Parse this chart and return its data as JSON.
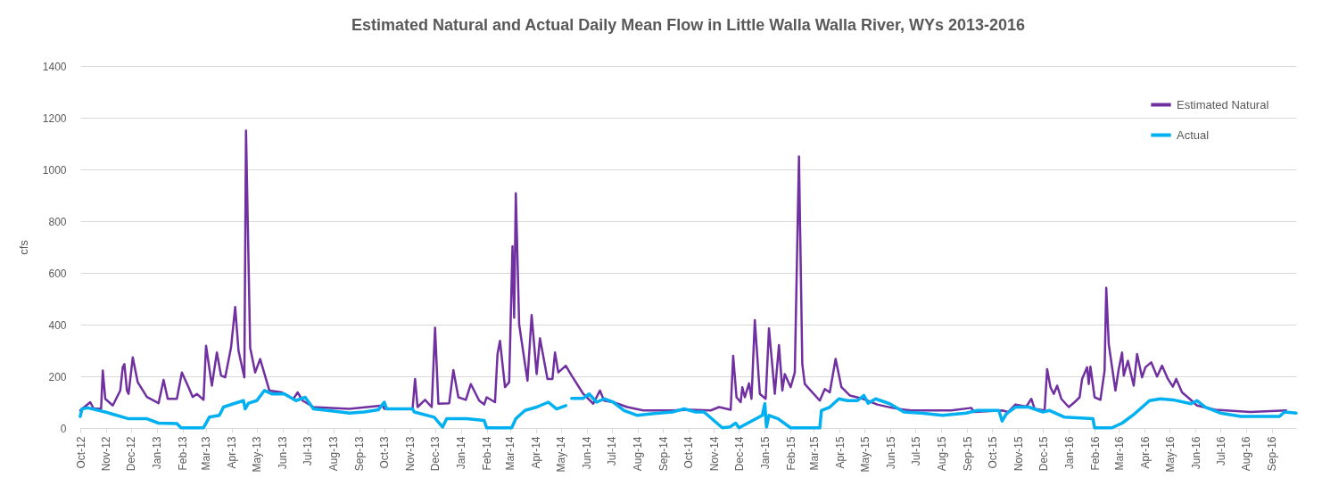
{
  "chart_data": {
    "type": "line",
    "title": "Estimated Natural and Actual Daily Mean Flow in Little Walla Walla River, WYs 2013-2016",
    "ylabel": "cfs",
    "xlim": [
      "2012-10-01",
      "2016-09-30"
    ],
    "ylim": [
      0,
      1400
    ],
    "yticks": [
      0,
      200,
      400,
      600,
      800,
      1000,
      1200,
      1400
    ],
    "xticks": [
      {
        "value": "2012-10-01",
        "label": "Oct-12"
      },
      {
        "value": "2012-11-01",
        "label": "Nov-12"
      },
      {
        "value": "2012-12-01",
        "label": "Dec-12"
      },
      {
        "value": "2013-01-01",
        "label": "Jan-13"
      },
      {
        "value": "2013-02-01",
        "label": "Feb-13"
      },
      {
        "value": "2013-03-01",
        "label": "Mar-13"
      },
      {
        "value": "2013-04-01",
        "label": "Apr-13"
      },
      {
        "value": "2013-05-01",
        "label": "May-13"
      },
      {
        "value": "2013-06-01",
        "label": "Jun-13"
      },
      {
        "value": "2013-07-01",
        "label": "Jul-13"
      },
      {
        "value": "2013-08-01",
        "label": "Aug-13"
      },
      {
        "value": "2013-09-01",
        "label": "Sep-13"
      },
      {
        "value": "2013-10-01",
        "label": "Oct-13"
      },
      {
        "value": "2013-11-01",
        "label": "Nov-13"
      },
      {
        "value": "2013-12-01",
        "label": "Dec-13"
      },
      {
        "value": "2014-01-01",
        "label": "Jan-14"
      },
      {
        "value": "2014-02-01",
        "label": "Feb-14"
      },
      {
        "value": "2014-03-01",
        "label": "Mar-14"
      },
      {
        "value": "2014-04-01",
        "label": "Apr-14"
      },
      {
        "value": "2014-05-01",
        "label": "May-14"
      },
      {
        "value": "2014-06-01",
        "label": "Jun-14"
      },
      {
        "value": "2014-07-01",
        "label": "Jul-14"
      },
      {
        "value": "2014-08-01",
        "label": "Aug-14"
      },
      {
        "value": "2014-09-01",
        "label": "Sep-14"
      },
      {
        "value": "2014-10-01",
        "label": "Oct-14"
      },
      {
        "value": "2014-11-01",
        "label": "Nov-14"
      },
      {
        "value": "2014-12-01",
        "label": "Dec-14"
      },
      {
        "value": "2015-01-01",
        "label": "Jan-15"
      },
      {
        "value": "2015-02-01",
        "label": "Feb-15"
      },
      {
        "value": "2015-03-01",
        "label": "Mar-15"
      },
      {
        "value": "2015-04-01",
        "label": "Apr-15"
      },
      {
        "value": "2015-05-01",
        "label": "May-15"
      },
      {
        "value": "2015-06-01",
        "label": "Jun-15"
      },
      {
        "value": "2015-07-01",
        "label": "Jul-15"
      },
      {
        "value": "2015-08-01",
        "label": "Aug-15"
      },
      {
        "value": "2015-09-01",
        "label": "Sep-15"
      },
      {
        "value": "2015-10-01",
        "label": "Oct-15"
      },
      {
        "value": "2015-11-01",
        "label": "Nov-15"
      },
      {
        "value": "2015-12-01",
        "label": "Dec-15"
      },
      {
        "value": "2016-01-01",
        "label": "Jan-16"
      },
      {
        "value": "2016-02-01",
        "label": "Feb-16"
      },
      {
        "value": "2016-03-01",
        "label": "Mar-16"
      },
      {
        "value": "2016-04-01",
        "label": "Apr-16"
      },
      {
        "value": "2016-05-01",
        "label": "May-16"
      },
      {
        "value": "2016-06-01",
        "label": "Jun-16"
      },
      {
        "value": "2016-07-01",
        "label": "Jul-16"
      },
      {
        "value": "2016-08-01",
        "label": "Aug-16"
      },
      {
        "value": "2016-09-01",
        "label": "Sep-16"
      }
    ],
    "grid": "y",
    "legend": "top right",
    "marker": "none",
    "line_style": "solid",
    "series": [
      {
        "name": "Estimated Natural",
        "color": "#7030a0",
        "x": [
          "2012-10-01",
          "2012-10-13",
          "2012-10-17",
          "2012-10-26",
          "2012-10-28",
          "2012-10-31",
          "2012-11-09",
          "2012-11-18",
          "2012-11-21",
          "2012-11-23",
          "2012-11-26",
          "2012-11-28",
          "2012-12-03",
          "2012-12-09",
          "2012-12-20",
          "2013-01-03",
          "2013-01-09",
          "2013-01-14",
          "2013-01-25",
          "2013-01-31",
          "2013-02-08",
          "2013-02-13",
          "2013-02-18",
          "2013-02-26",
          "2013-03-01",
          "2013-03-08",
          "2013-03-14",
          "2013-03-19",
          "2013-03-24",
          "2013-03-31",
          "2013-04-05",
          "2013-04-09",
          "2013-04-16",
          "2013-04-18",
          "2013-04-23",
          "2013-04-29",
          "2013-05-05",
          "2013-05-16",
          "2013-05-31",
          "2013-06-14",
          "2013-06-19",
          "2013-06-25",
          "2013-07-08",
          "2013-08-20",
          "2013-09-29",
          "2013-10-01",
          "2013-11-04",
          "2013-11-07",
          "2013-11-10",
          "2013-11-19",
          "2013-11-27",
          "2013-12-01",
          "2013-12-05",
          "2013-12-18",
          "2013-12-23",
          "2013-12-29",
          "2014-01-07",
          "2014-01-13",
          "2014-01-23",
          "2014-01-29",
          "2014-02-01",
          "2014-02-11",
          "2014-02-14",
          "2014-02-17",
          "2014-02-20",
          "2014-02-23",
          "2014-02-28",
          "2014-03-04",
          "2014-03-06",
          "2014-03-08",
          "2014-03-12",
          "2014-03-22",
          "2014-03-27",
          "2014-04-02",
          "2014-04-06",
          "2014-04-15",
          "2014-04-21",
          "2014-04-24",
          "2014-04-28",
          "2014-05-07",
          "2014-05-14",
          "2014-05-28",
          "2014-06-09",
          "2014-06-17",
          "2014-06-22",
          "2014-07-03",
          "2014-07-20",
          "2014-08-08",
          "2014-09-12",
          "2014-10-04",
          "2014-10-28",
          "2014-11-07",
          "2014-11-21",
          "2014-11-24",
          "2014-11-28",
          "2014-12-03",
          "2014-12-05",
          "2014-12-08",
          "2014-12-13",
          "2014-12-16",
          "2014-12-20",
          "2014-12-26",
          "2015-01-02",
          "2015-01-06",
          "2015-01-13",
          "2015-01-18",
          "2015-01-22",
          "2015-01-25",
          "2015-02-01",
          "2015-02-06",
          "2015-02-11",
          "2015-02-15",
          "2015-02-18",
          "2015-02-25",
          "2015-03-08",
          "2015-03-14",
          "2015-03-20",
          "2015-03-27",
          "2015-04-03",
          "2015-04-13",
          "2015-04-29",
          "2015-05-16",
          "2015-06-03",
          "2015-06-25",
          "2015-08-13",
          "2015-09-06",
          "2015-09-09",
          "2015-10-13",
          "2015-10-20",
          "2015-10-29",
          "2015-11-11",
          "2015-11-17",
          "2015-11-21",
          "2015-12-03",
          "2015-12-06",
          "2015-12-10",
          "2015-12-14",
          "2015-12-18",
          "2015-12-23",
          "2016-01-01",
          "2016-01-08",
          "2016-01-14",
          "2016-01-17",
          "2016-01-23",
          "2016-01-25",
          "2016-01-27",
          "2016-02-01",
          "2016-02-08",
          "2016-02-13",
          "2016-02-15",
          "2016-02-18",
          "2016-02-26",
          "2016-03-01",
          "2016-03-05",
          "2016-03-07",
          "2016-03-12",
          "2016-03-19",
          "2016-03-23",
          "2016-03-29",
          "2016-04-02",
          "2016-04-09",
          "2016-04-16",
          "2016-04-22",
          "2016-04-29",
          "2016-05-05",
          "2016-05-09",
          "2016-05-16",
          "2016-05-23",
          "2016-06-03",
          "2016-06-25",
          "2016-08-06",
          "2016-09-18"
        ],
        "values": [
          68,
          100,
          75,
          75,
          222,
          113,
          87,
          145,
          235,
          247,
          145,
          132,
          273,
          177,
          120,
          96,
          186,
          113,
          113,
          215,
          158,
          120,
          132,
          109,
          318,
          164,
          292,
          203,
          196,
          311,
          468,
          299,
          196,
          1150,
          311,
          215,
          267,
          145,
          138,
          113,
          138,
          106,
          81,
          74,
          87,
          74,
          74,
          190,
          81,
          109,
          81,
          388,
          94,
          96,
          224,
          119,
          109,
          170,
          106,
          91,
          119,
          100,
          286,
          337,
          247,
          158,
          177,
          703,
          427,
          908,
          401,
          183,
          437,
          209,
          347,
          190,
          190,
          292,
          215,
          241,
          203,
          132,
          94,
          145,
          106,
          100,
          81,
          68,
          68,
          71,
          68,
          81,
          71,
          279,
          119,
          100,
          158,
          119,
          173,
          113,
          417,
          132,
          113,
          385,
          132,
          321,
          145,
          209,
          158,
          215,
          1050,
          247,
          170,
          145,
          106,
          151,
          138,
          267,
          158,
          126,
          113,
          91,
          78,
          68,
          68,
          78,
          62,
          68,
          62,
          91,
          83,
          113,
          74,
          68,
          228,
          158,
          132,
          164,
          113,
          81,
          100,
          119,
          190,
          235,
          170,
          237,
          119,
          109,
          222,
          542,
          324,
          145,
          228,
          292,
          203,
          260,
          164,
          286,
          196,
          235,
          254,
          199,
          241,
          190,
          160,
          190,
          138,
          119,
          87,
          71,
          62,
          68
        ]
      },
      {
        "name": "Actual",
        "color": "#00b0f0",
        "x": [
          "2012-10-01",
          "2012-10-03",
          "2012-10-10",
          "2012-10-31",
          "2012-11-28",
          "2012-12-20",
          "2013-01-03",
          "2013-01-25",
          "2013-01-30",
          "2013-02-26",
          "2013-03-05",
          "2013-03-17",
          "2013-03-22",
          "2013-04-03",
          "2013-04-15",
          "2013-04-17",
          "2013-04-21",
          "2013-05-01",
          "2013-05-10",
          "2013-05-19",
          "2013-06-03",
          "2013-06-17",
          "2013-06-28",
          "2013-07-08",
          "2013-08-03",
          "2013-08-20",
          "2013-09-07",
          "2013-09-24",
          "2013-10-01",
          "2013-10-04",
          "2013-11-04",
          "2013-11-06",
          "2013-11-30",
          "2013-12-10",
          "2013-12-15",
          "2014-01-08",
          "2014-01-29",
          "2014-02-01",
          "2014-03-03",
          "2014-03-08",
          "2014-03-19",
          "2014-04-02",
          "2014-04-16",
          "2014-04-26",
          "2014-05-07",
          "2014-05-10",
          "2014-05-14",
          "2014-05-28",
          "2014-06-04",
          "2014-06-13",
          "2014-06-22",
          "2014-07-03",
          "2014-07-16",
          "2014-08-01",
          "2014-08-18",
          "2014-09-12",
          "2014-09-26",
          "2014-10-10",
          "2014-10-20",
          "2014-11-11",
          "2014-11-20",
          "2014-11-27",
          "2014-12-01",
          "2014-12-19",
          "2014-12-29",
          "2015-01-01",
          "2015-01-03",
          "2015-01-06",
          "2015-01-17",
          "2015-02-01",
          "2015-03-08",
          "2015-03-10",
          "2015-03-20",
          "2015-03-31",
          "2015-04-10",
          "2015-04-22",
          "2015-04-30",
          "2015-05-05",
          "2015-05-14",
          "2015-05-31",
          "2015-06-17",
          "2015-07-08",
          "2015-08-02",
          "2015-08-31",
          "2015-09-13",
          "2015-10-09",
          "2015-10-13",
          "2015-10-18",
          "2015-10-29",
          "2015-11-14",
          "2015-12-01",
          "2015-12-09",
          "2015-12-27",
          "2016-01-30",
          "2016-02-01",
          "2016-02-22",
          "2016-03-05",
          "2016-03-20",
          "2016-04-07",
          "2016-04-20",
          "2016-05-05",
          "2016-05-27",
          "2016-06-03",
          "2016-06-13",
          "2016-07-01",
          "2016-07-26",
          "2016-09-10",
          "2016-09-16",
          "2016-09-30"
        ],
        "values": [
          45,
          74,
          78,
          62,
          36,
          36,
          19,
          17,
          1,
          1,
          42,
          49,
          81,
          94,
          106,
          74,
          96,
          106,
          145,
          132,
          132,
          106,
          119,
          74,
          65,
          58,
          62,
          71,
          100,
          74,
          74,
          62,
          42,
          4,
          36,
          36,
          29,
          1,
          1,
          36,
          68,
          81,
          100,
          74,
          87,
          null,
          115,
          115,
          132,
          100,
          113,
          100,
          68,
          49,
          55,
          62,
          74,
          62,
          62,
          1,
          4,
          19,
          1,
          32,
          49,
          94,
          4,
          49,
          36,
          1,
          1,
          68,
          81,
          113,
          106,
          106,
          126,
          96,
          113,
          94,
          62,
          58,
          49,
          58,
          68,
          68,
          27,
          55,
          81,
          81,
          62,
          68,
          42,
          36,
          1,
          1,
          19,
          55,
          106,
          113,
          109,
          94,
          106,
          81,
          58,
          45,
          45,
          62,
          58
        ]
      }
    ]
  }
}
